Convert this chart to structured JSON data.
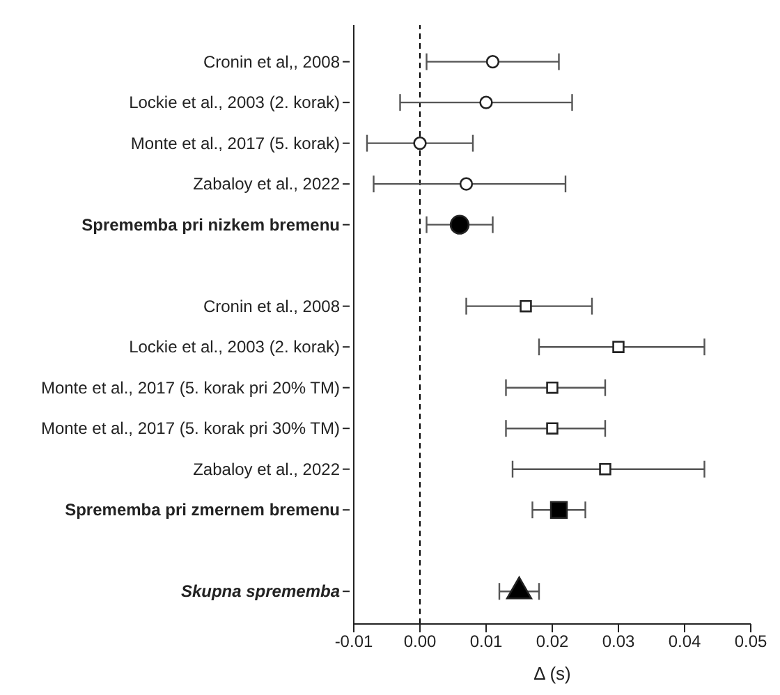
{
  "chart_data": {
    "type": "scatter",
    "orientation": "horizontal",
    "xlabel": "Δ (s)",
    "categories": [
      "Cronin et al,, 2008",
      "Lockie et al., 2003 (2. korak)",
      "Monte et al., 2017 (5. korak)",
      "Zabaloy et al., 2022",
      "Sprememba pri nizkem bremenu",
      null,
      "Cronin et al., 2008",
      "Lockie et al., 2003 (2. korak)",
      "Monte et al., 2017 (5. korak pri 20% TM)",
      "Monte et al., 2017 (5. korak pri 30% TM)",
      "Zabaloy et al., 2022",
      "Sprememba pri zmernem bremenu",
      null,
      "Skupna sprememba"
    ],
    "xlim": [
      -0.01,
      0.05
    ],
    "xticks": [
      -0.01,
      {
        "value": 0,
        "label": "0.00"
      },
      0.01,
      0.02,
      0.03,
      0.04,
      0.05
    ],
    "ref_lines": [
      {
        "axis": "x",
        "value": 0,
        "line_style": "dashed",
        "color": "#000000"
      }
    ],
    "series": [
      {
        "marker": "circle",
        "color": "#ffffff",
        "values": [
          0.011,
          0.01,
          0.0,
          0.007,
          null,
          null,
          null,
          null,
          null,
          null,
          null,
          null,
          null,
          null
        ],
        "errors": [
          [
            0.001,
            0.021
          ],
          [
            -0.003,
            0.023
          ],
          [
            -0.008,
            0.008
          ],
          [
            -0.007,
            0.022
          ],
          null,
          null,
          null,
          null,
          null,
          null,
          null,
          null,
          null,
          null
        ]
      },
      {
        "marker": "circle",
        "color": "#000000",
        "values": [
          null,
          null,
          null,
          null,
          0.006,
          null,
          null,
          null,
          null,
          null,
          null,
          null,
          null,
          null
        ],
        "errors": [
          null,
          null,
          null,
          null,
          [
            0.001,
            0.011
          ],
          null,
          null,
          null,
          null,
          null,
          null,
          null,
          null,
          null
        ]
      },
      {
        "marker": "square",
        "color": "#ffffff",
        "values": [
          null,
          null,
          null,
          null,
          null,
          null,
          0.016,
          0.03,
          0.02,
          0.02,
          0.028,
          null,
          null,
          null
        ],
        "errors": [
          null,
          null,
          null,
          null,
          null,
          null,
          [
            0.007,
            0.026
          ],
          [
            0.018,
            0.043
          ],
          [
            0.013,
            0.028
          ],
          [
            0.013,
            0.028
          ],
          [
            0.014,
            0.043
          ],
          null,
          null,
          null
        ]
      },
      {
        "marker": "square",
        "color": "#000000",
        "values": [
          null,
          null,
          null,
          null,
          null,
          null,
          null,
          null,
          null,
          null,
          null,
          0.021,
          null,
          null
        ],
        "errors": [
          null,
          null,
          null,
          null,
          null,
          null,
          null,
          null,
          null,
          null,
          null,
          [
            0.017,
            0.025
          ],
          null,
          null
        ]
      },
      {
        "marker": "triangle",
        "color": "#000000",
        "values": [
          null,
          null,
          null,
          null,
          null,
          null,
          null,
          null,
          null,
          null,
          null,
          null,
          null,
          0.015
        ],
        "errors": [
          null,
          null,
          null,
          null,
          null,
          null,
          null,
          null,
          null,
          null,
          null,
          null,
          null,
          [
            0.012,
            0.018
          ]
        ]
      }
    ]
  }
}
